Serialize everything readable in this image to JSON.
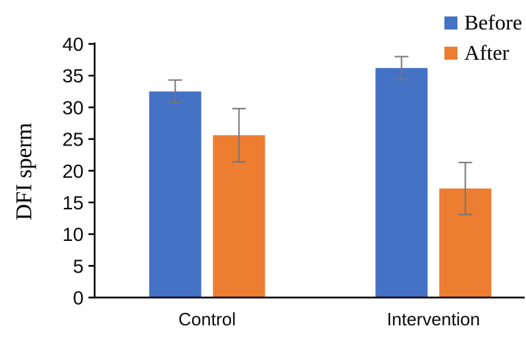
{
  "chart_data": {
    "type": "bar",
    "title": "",
    "ylabel": "DFI sperm",
    "xlabel": "",
    "categories": [
      "Control",
      "Intervention"
    ],
    "series": [
      {
        "name": "Before",
        "color": "#4472C4",
        "values": [
          32.5,
          36.2
        ],
        "errors": [
          1.8,
          1.8
        ]
      },
      {
        "name": "After",
        "color": "#ED7D31",
        "values": [
          25.6,
          17.2
        ],
        "errors": [
          4.2,
          4.1
        ]
      }
    ],
    "ylim": [
      0,
      40
    ],
    "yticks": [
      0,
      5,
      10,
      15,
      20,
      25,
      30,
      35,
      40
    ],
    "legend_position": "top-right",
    "grid": false,
    "error_bar_color": "#757575",
    "axis_color": "#000000"
  }
}
